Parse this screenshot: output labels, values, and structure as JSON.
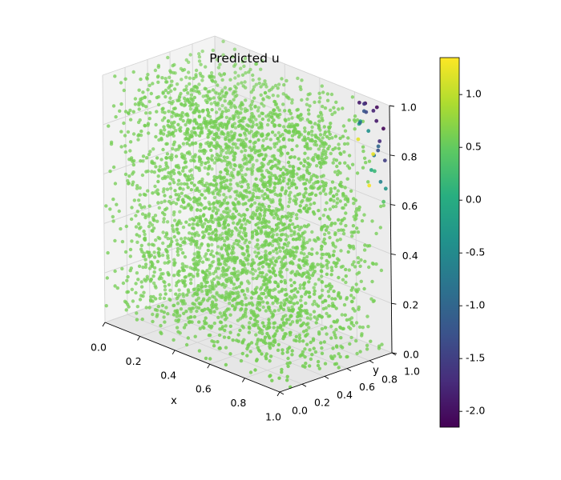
{
  "chart_data": {
    "type": "scatter",
    "projection": "3d",
    "title": "Predicted u",
    "xlabel": "x",
    "ylabel": "y",
    "zlabel": "",
    "xlim": [
      0.0,
      1.0
    ],
    "ylim": [
      0.0,
      1.0
    ],
    "zlim": [
      0.0,
      1.0
    ],
    "x_ticks": [
      "0.0",
      "0.2",
      "0.4",
      "0.6",
      "0.8",
      "1.0"
    ],
    "y_ticks": [
      "0.0",
      "0.2",
      "0.4",
      "0.6",
      "0.8",
      "1.0"
    ],
    "z_ticks": [
      "0.0",
      "0.2",
      "0.4",
      "0.6",
      "0.8",
      "1.0"
    ],
    "grid": true,
    "colormap": "viridis",
    "color_range": [
      -2.15,
      1.35
    ],
    "colorbar_ticks": [
      "1.0",
      "0.5",
      "0.0",
      "-0.5",
      "-1.0",
      "-1.5",
      "-2.0"
    ],
    "colorbar_tick_values": [
      1.0,
      0.5,
      0.0,
      -0.5,
      -1.0,
      -1.5,
      -2.0
    ],
    "dominant_value": 0.6,
    "bulk_point_count": 3600,
    "outlier_points": [
      {
        "x": 0.88,
        "y": 0.97,
        "z": 0.98,
        "u": -2.0
      },
      {
        "x": 0.92,
        "y": 0.98,
        "z": 0.96,
        "u": -1.8
      },
      {
        "x": 0.95,
        "y": 0.96,
        "z": 0.93,
        "u": -1.9
      },
      {
        "x": 0.9,
        "y": 0.93,
        "z": 0.99,
        "u": -1.6
      },
      {
        "x": 0.97,
        "y": 0.99,
        "z": 0.9,
        "u": -2.1
      },
      {
        "x": 0.93,
        "y": 0.9,
        "z": 0.97,
        "u": -1.4
      },
      {
        "x": 0.98,
        "y": 0.94,
        "z": 0.86,
        "u": -1.7
      },
      {
        "x": 0.86,
        "y": 0.99,
        "z": 0.94,
        "u": -1.2
      },
      {
        "x": 0.96,
        "y": 0.92,
        "z": 0.8,
        "u": -0.8
      },
      {
        "x": 0.99,
        "y": 0.97,
        "z": 0.78,
        "u": -1.5
      },
      {
        "x": 0.91,
        "y": 0.95,
        "z": 0.88,
        "u": -0.4
      },
      {
        "x": 0.94,
        "y": 0.99,
        "z": 0.82,
        "u": -1.0
      },
      {
        "x": 0.89,
        "y": 0.91,
        "z": 0.92,
        "u": -0.2
      },
      {
        "x": 0.97,
        "y": 0.88,
        "z": 0.75,
        "u": 0.0
      },
      {
        "x": 0.99,
        "y": 0.93,
        "z": 0.7,
        "u": -0.6
      },
      {
        "x": 0.85,
        "y": 0.96,
        "z": 0.89,
        "u": 0.1
      },
      {
        "x": 0.93,
        "y": 0.97,
        "z": 0.72,
        "u": 0.2
      },
      {
        "x": 0.98,
        "y": 0.99,
        "z": 0.66,
        "u": -0.3
      },
      {
        "x": 0.87,
        "y": 0.92,
        "z": 0.84,
        "u": 1.2
      },
      {
        "x": 0.95,
        "y": 0.89,
        "z": 0.68,
        "u": 1.3
      },
      {
        "x": 0.91,
        "y": 0.99,
        "z": 0.78,
        "u": 1.25
      },
      {
        "x": 0.99,
        "y": 0.91,
        "z": 0.83,
        "u": -1.3
      },
      {
        "x": 0.84,
        "y": 0.98,
        "z": 0.97,
        "u": -1.9
      },
      {
        "x": 0.96,
        "y": 0.95,
        "z": 0.99,
        "u": -2.05
      },
      {
        "x": 0.92,
        "y": 0.86,
        "z": 0.93,
        "u": -0.9
      },
      {
        "x": 0.98,
        "y": 0.97,
        "z": 0.61,
        "u": 0.4
      }
    ]
  }
}
